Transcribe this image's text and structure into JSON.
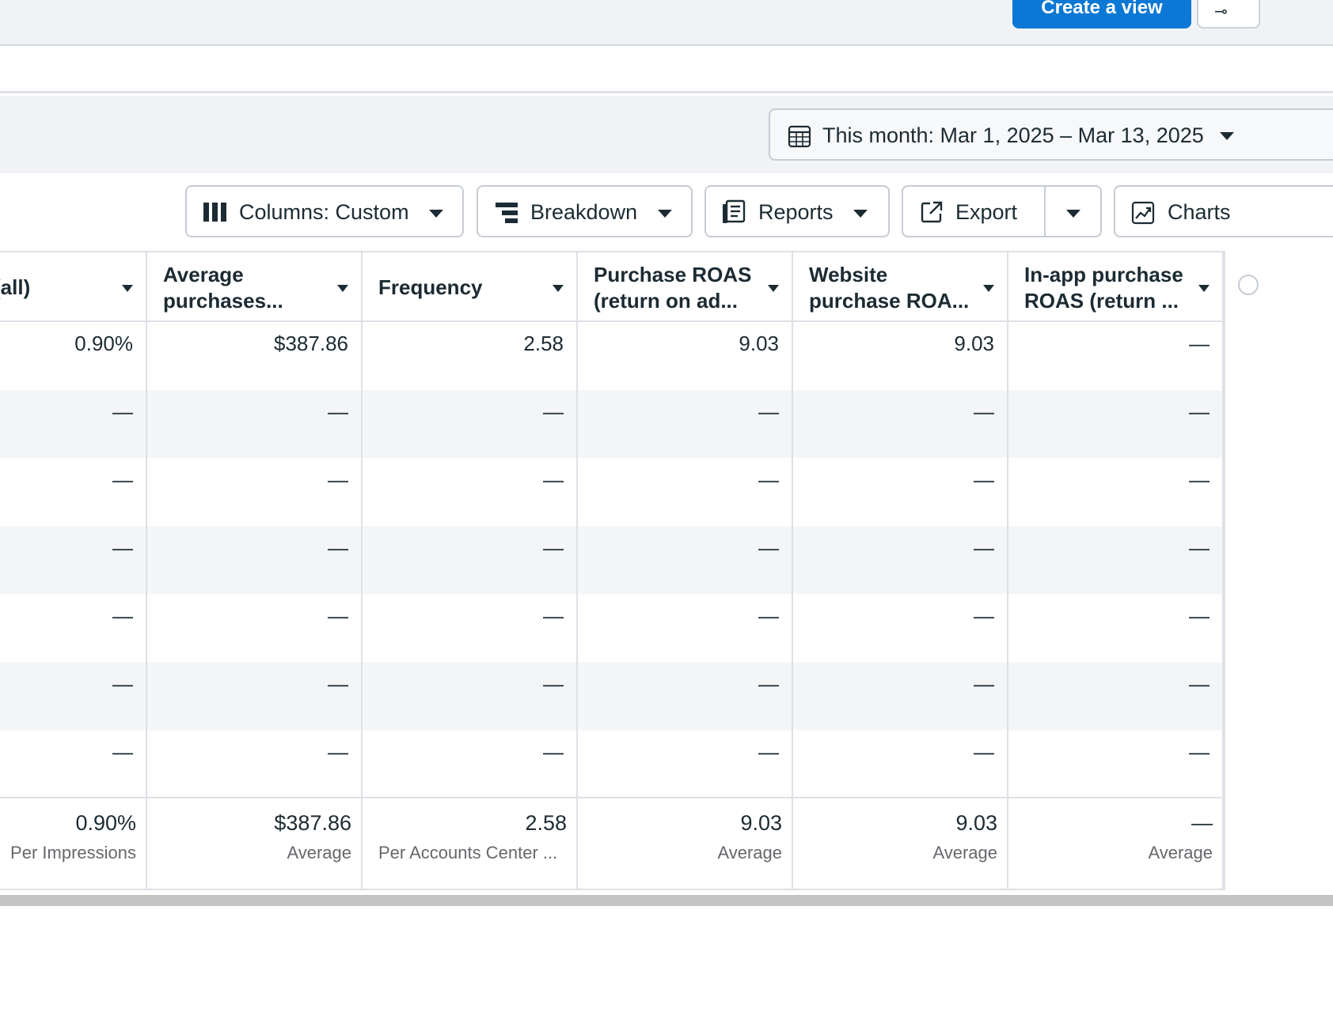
{
  "topbar": {
    "create_view_label": "Create a view",
    "settings_icon": "sliders-icon"
  },
  "date": {
    "label": "This month: Mar 1, 2025 – Mar 13, 2025",
    "icon": "calendar-icon"
  },
  "toolbar": {
    "columns_label": "Columns: Custom",
    "breakdown_label": "Breakdown",
    "reports_label": "Reports",
    "export_label": "Export",
    "charts_label": "Charts"
  },
  "table": {
    "headers": [
      "(all)",
      "Average purchases...",
      "Frequency",
      "Purchase ROAS (return on ad...",
      "Website purchase ROA...",
      "In-app purchase ROAS (return ..."
    ],
    "header_lines": {
      "h0": [
        "(all)"
      ],
      "h1": [
        "Average",
        "purchases..."
      ],
      "h2": [
        "Frequency"
      ],
      "h3": [
        "Purchase ROAS",
        "(return on ad..."
      ],
      "h4": [
        "Website",
        "purchase ROA..."
      ],
      "h5": [
        "In-app purchase",
        "ROAS (return ..."
      ]
    },
    "rows": [
      [
        "0.90%",
        "$387.86",
        "2.58",
        "9.03",
        "9.03",
        "—"
      ],
      [
        "—",
        "—",
        "—",
        "—",
        "—",
        "—"
      ],
      [
        "—",
        "—",
        "—",
        "—",
        "—",
        "—"
      ],
      [
        "—",
        "—",
        "—",
        "—",
        "—",
        "—"
      ],
      [
        "—",
        "—",
        "—",
        "—",
        "—",
        "—"
      ],
      [
        "—",
        "—",
        "—",
        "—",
        "—",
        "—"
      ],
      [
        "—",
        "—",
        "—",
        "—",
        "—",
        "—"
      ]
    ],
    "totals": [
      {
        "value": "0.90%",
        "sub": "Per Impressions"
      },
      {
        "value": "$387.86",
        "sub": "Average"
      },
      {
        "value": "2.58",
        "sub": "Per Accounts Center ..."
      },
      {
        "value": "9.03",
        "sub": "Average"
      },
      {
        "value": "9.03",
        "sub": "Average"
      },
      {
        "value": "—",
        "sub": "Average"
      }
    ]
  }
}
